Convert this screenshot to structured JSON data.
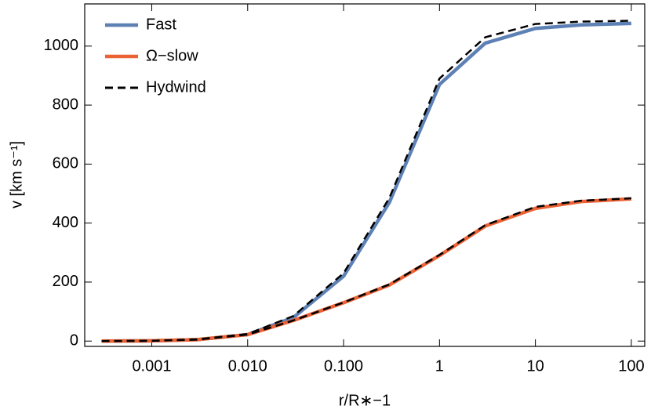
{
  "chart_data": {
    "type": "line",
    "x_label": "r/R∗−1",
    "y_label": "v [km s⁻¹]",
    "x": [
      0.0003,
      0.001,
      0.003,
      0.01,
      0.03,
      0.1,
      0.3,
      1,
      3,
      10,
      30,
      100
    ],
    "series": [
      {
        "name": "Fast",
        "color": "#5e81b5",
        "dash": false,
        "values": [
          0,
          1,
          5,
          22,
          80,
          220,
          470,
          870,
          1010,
          1060,
          1072,
          1077
        ]
      },
      {
        "name": "Ω−slow",
        "color": "#eb6235",
        "dash": false,
        "values": [
          0,
          1,
          5,
          22,
          70,
          130,
          190,
          290,
          390,
          450,
          473,
          482
        ]
      },
      {
        "name": "Hydwind",
        "color": "#000000",
        "dash": true,
        "values": [
          0,
          1,
          6,
          24,
          85,
          230,
          485,
          890,
          1030,
          1075,
          1083,
          1086
        ]
      },
      {
        "name": "Hydwind",
        "color": "#000000",
        "dash": true,
        "values": [
          0,
          1,
          5,
          22,
          70,
          131,
          192,
          292,
          393,
          455,
          476,
          484
        ]
      }
    ],
    "xscale": "log",
    "xlim": [
      0.0002,
      138
    ],
    "ylim": [
      -18,
      1143
    ],
    "xticks": [
      0.001,
      {
        "value": 0.01,
        "label": "0.010"
      },
      {
        "value": 0.1,
        "label": "0.100"
      },
      1,
      10,
      100
    ],
    "yticks": [
      0,
      200,
      400,
      600,
      800,
      1000
    ],
    "legend": "upper left"
  }
}
